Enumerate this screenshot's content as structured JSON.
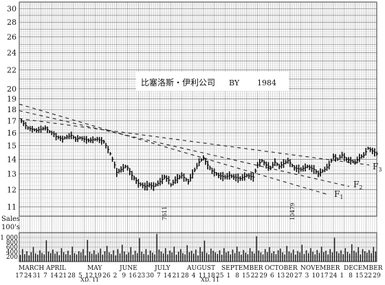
{
  "chart_data": {
    "type": "bar",
    "title": "比塞洛斯・伊利公司",
    "subtitle": "BY",
    "year_label": "1984",
    "price_axis": {
      "ticks": [
        11,
        12,
        13,
        14,
        15,
        16,
        17,
        18,
        19,
        20,
        22,
        24,
        26,
        28,
        30
      ],
      "ylim": [
        10.5,
        31
      ],
      "scale": "logarithmic"
    },
    "volume_axis": {
      "label_1": "Sales",
      "label_2": "100's",
      "ticks": [
        200,
        400,
        600,
        800,
        1000
      ],
      "tick_labels": [
        "200",
        "400",
        "600",
        "800",
        "1 000"
      ],
      "ylim": [
        0,
        1200
      ]
    },
    "months": [
      "MARCH",
      "APRIL",
      "MAY",
      "JUNE",
      "JULY",
      "AUGUST",
      "SEPTEMBER",
      "OCTOBER",
      "NOVEMBER",
      "DECEMBER"
    ],
    "date_labels": [
      "17",
      "24",
      "31",
      "7",
      "14",
      "21",
      "28",
      "5",
      "12",
      "19",
      "26",
      "2",
      "9",
      "16",
      "23",
      "30",
      "7",
      "14",
      "21",
      "28",
      "4",
      "11",
      "18",
      "25",
      "1",
      "8",
      "15",
      "22",
      "29",
      "6",
      "13",
      "20",
      "27",
      "3",
      "10",
      "17",
      "24",
      "1",
      "8",
      "15",
      "22",
      "29"
    ],
    "xd_marks": [
      "XD. 11",
      "XD. 11"
    ],
    "volume_annotations": [
      "7611",
      "10479"
    ],
    "grid": true,
    "series": [
      {
        "name": "Price",
        "weeks": [
          1,
          4,
          8,
          12,
          14,
          16,
          17,
          20,
          21,
          24,
          26,
          28,
          32,
          36,
          39,
          40,
          42,
          44,
          45,
          47,
          49,
          50,
          52,
          55,
          58,
          60,
          62,
          65,
          67,
          69,
          70,
          72,
          75,
          78,
          80,
          83,
          85,
          87,
          89,
          92,
          95,
          97,
          99,
          102,
          105,
          108,
          110,
          112,
          114,
          116,
          118,
          120,
          124,
          127,
          130,
          133,
          136,
          138,
          141,
          143,
          145,
          147,
          149,
          151,
          153,
          155,
          157,
          159,
          161,
          163,
          165
        ],
        "close": [
          17.0,
          16.4,
          16.2,
          16.4,
          16.1,
          15.9,
          15.7,
          15.5,
          15.6,
          15.8,
          15.5,
          15.6,
          15.4,
          15.5,
          15.3,
          15.0,
          14.4,
          13.6,
          13.1,
          13.3,
          13.5,
          13.4,
          12.9,
          12.4,
          12.2,
          12.3,
          12.2,
          12.5,
          12.8,
          12.6,
          12.3,
          12.6,
          12.9,
          12.5,
          13.0,
          13.8,
          14.1,
          13.6,
          13.2,
          12.9,
          12.8,
          12.9,
          12.8,
          12.7,
          12.9,
          12.8,
          13.6,
          13.9,
          13.6,
          13.4,
          13.8,
          13.5,
          13.9,
          13.4,
          13.3,
          13.5,
          13.3,
          13.0,
          13.3,
          13.6,
          14.2,
          14.0,
          14.3,
          14.0,
          13.9,
          13.8,
          14.1,
          14.3,
          14.8,
          14.6,
          14.4
        ]
      }
    ],
    "trendlines": [
      {
        "name": "F1",
        "label": "F",
        "subscript": "1",
        "start": 18.5,
        "end": 11.7
      },
      {
        "name": "F2",
        "label": "F",
        "subscript": "2",
        "start": 17.9,
        "end": 12.2
      },
      {
        "name": "F3",
        "label": "F",
        "subscript": "3",
        "start": 17.2,
        "end": 13.6
      }
    ],
    "volume": {
      "name": "Sales",
      "values": [
        280,
        520,
        310,
        430,
        260,
        390,
        610,
        340,
        290,
        470,
        360,
        300,
        880,
        420,
        350,
        500,
        330,
        410,
        270,
        560,
        390,
        310,
        450,
        280,
        620,
        350,
        300,
        430,
        380,
        520,
        260,
        900,
        410,
        330,
        470,
        300,
        360,
        540,
        290,
        430,
        650,
        380,
        310,
        470,
        260,
        520,
        340,
        700,
        420,
        300,
        380,
        600,
        290,
        450,
        350,
        980,
        410,
        320,
        520,
        280,
        460,
        370,
        300,
        1150,
        500,
        420,
        340,
        560,
        300,
        460,
        380,
        620,
        290,
        410,
        520,
        350,
        300,
        680,
        390,
        450,
        330,
        500,
        260,
        600,
        410,
        870,
        360,
        300,
        540,
        450,
        380,
        320,
        470,
        290,
        560,
        380,
        430,
        300,
        500,
        350,
        620,
        410,
        290,
        480,
        370,
        310,
        560,
        420,
        340,
        1050,
        460,
        380,
        300,
        520,
        390,
        600,
        350,
        430,
        310,
        470,
        540,
        380,
        300,
        650,
        420,
        360,
        500,
        290,
        440,
        380,
        700,
        320,
        470,
        350,
        560,
        410,
        300,
        480,
        360,
        620,
        390,
        450,
        300,
        520,
        380,
        990,
        420,
        350,
        470,
        310,
        560,
        400,
        330,
        720,
        450,
        380,
        600,
        300,
        520,
        430,
        370,
        480,
        350,
        610,
        420
      ]
    }
  }
}
